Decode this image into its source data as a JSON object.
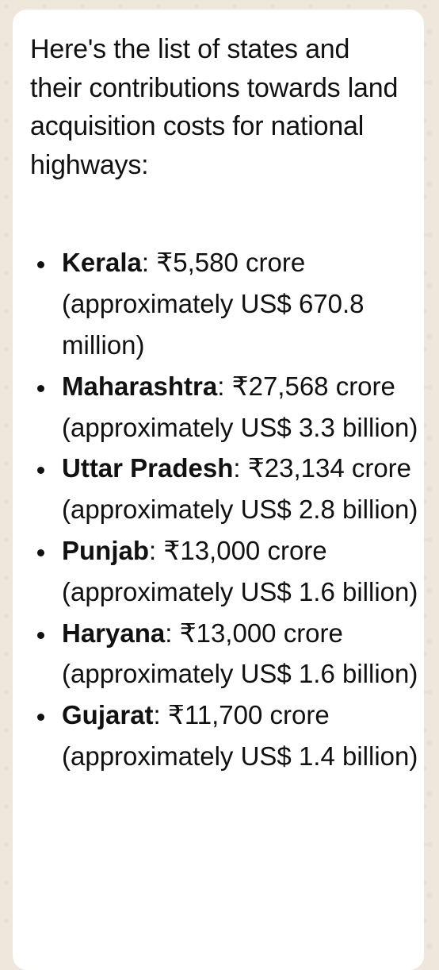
{
  "message": {
    "intro": "Here's the list of states and their contributions towards land acquisition costs for national highways:",
    "states": [
      {
        "name": "Kerala",
        "separator": ":",
        "detail": " ₹5,580 crore (approximately US$ 670.8 million)"
      },
      {
        "name": "Maharashtra",
        "separator": ":",
        "detail": " ₹27,568 crore (approximately US$ 3.3 billion)"
      },
      {
        "name": "Uttar Pradesh",
        "separator": ":",
        "detail": " ₹23,134 crore (approximately US$ 2.8 billion)"
      },
      {
        "name": "Punjab",
        "separator": ":",
        "detail": " ₹13,000 crore (approximately US$ 1.6 billion)"
      },
      {
        "name": "Haryana",
        "separator": ":",
        "detail": " ₹13,000 crore (approximately US$ 1.6 billion)"
      },
      {
        "name": "Gujarat",
        "separator": ":",
        "detail": " ₹11,700 crore (approximately US$ 1.4 billion)"
      }
    ]
  },
  "colors": {
    "background": "#efe7dc",
    "bubble": "#ffffff",
    "text": "#111111"
  }
}
